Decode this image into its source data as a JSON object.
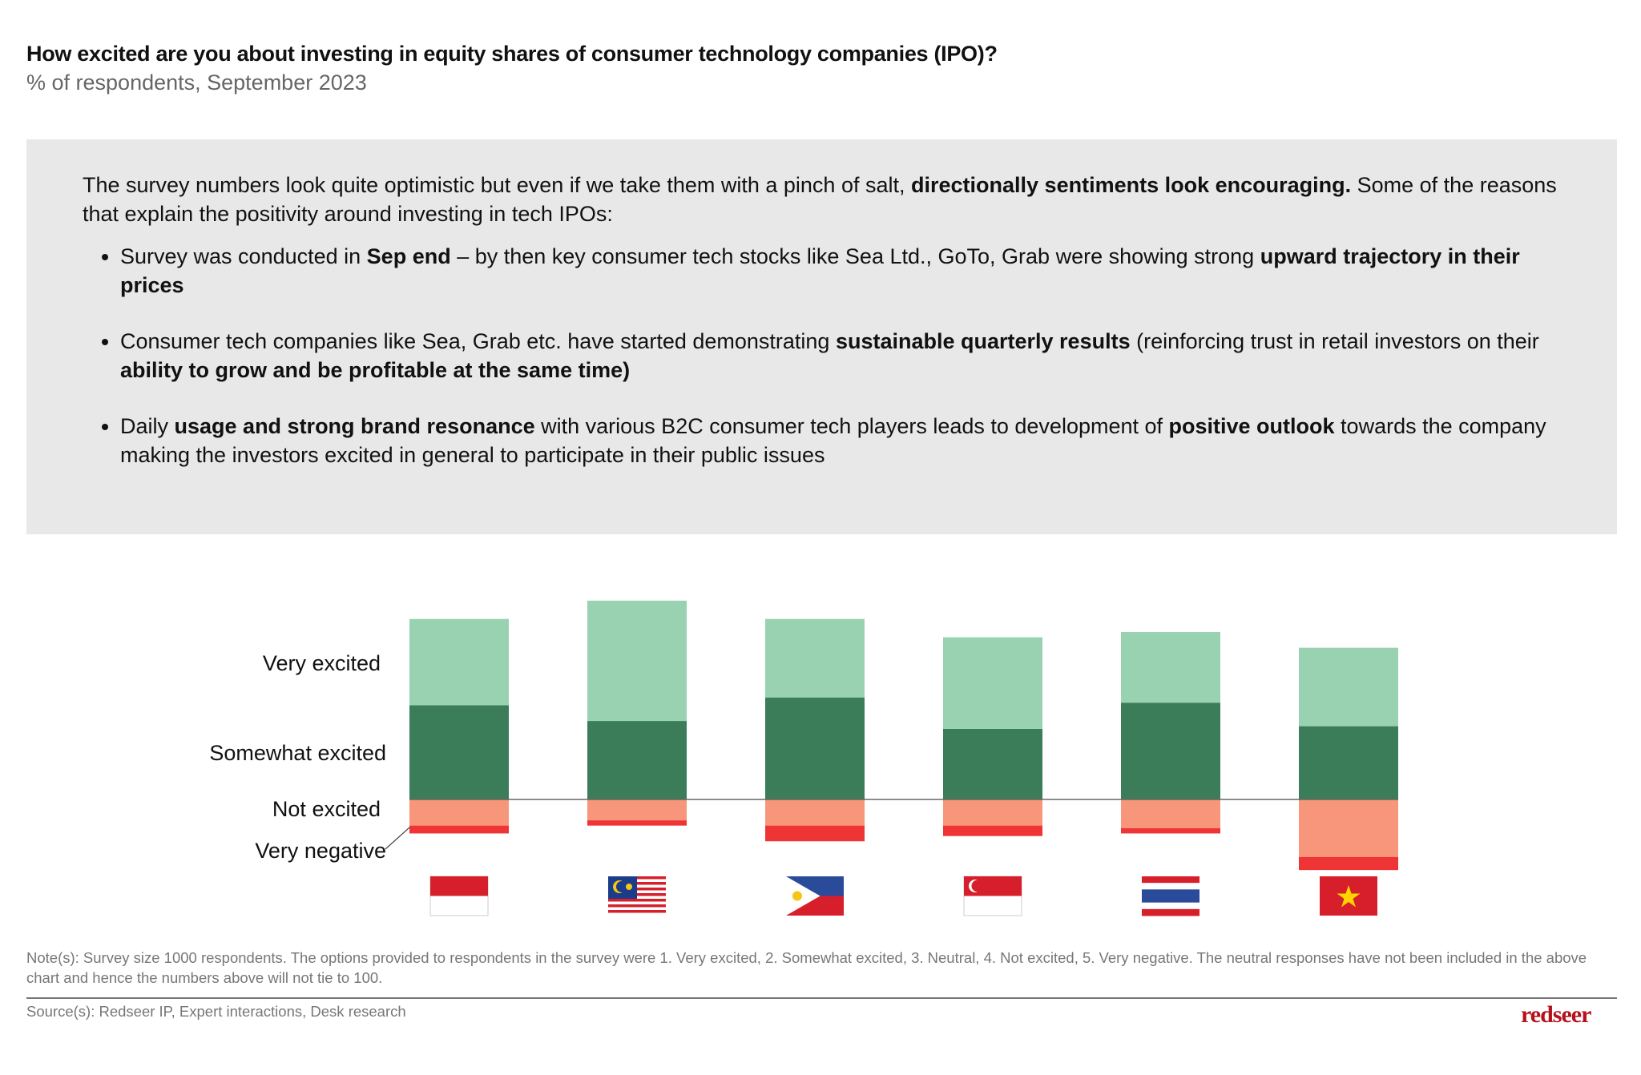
{
  "header": {
    "title": "How excited are you about investing in equity shares of consumer technology companies (IPO)?",
    "subtitle": "% of respondents, September 2023"
  },
  "commentary": {
    "intro": [
      {
        "t": "The survey numbers look quite optimistic but even if we take them with a pinch of salt, ",
        "b": false
      },
      {
        "t": "directionally sentiments look encouraging.",
        "b": true
      },
      {
        "t": " Some of the reasons that explain the positivity around investing in tech IPOs:",
        "b": false
      }
    ],
    "bullets": [
      [
        {
          "t": "Survey was conducted in ",
          "b": false
        },
        {
          "t": "Sep end",
          "b": true
        },
        {
          "t": " – by then key consumer tech stocks like Sea Ltd., GoTo, Grab were showing strong ",
          "b": false
        },
        {
          "t": "upward trajectory in their prices",
          "b": true
        }
      ],
      [
        {
          "t": "Consumer tech companies like Sea, Grab etc. have started demonstrating ",
          "b": false
        },
        {
          "t": "sustainable quarterly results",
          "b": true
        },
        {
          "t": " (reinforcing trust in retail investors on their ",
          "b": false
        },
        {
          "t": "ability to grow and be profitable at the same time)",
          "b": true
        }
      ],
      [
        {
          "t": "Daily ",
          "b": false
        },
        {
          "t": "usage and strong brand resonance",
          "b": true
        },
        {
          "t": " with various B2C consumer tech players leads to development of ",
          "b": false
        },
        {
          "t": "positive outlook",
          "b": true
        },
        {
          "t": " towards the company making the investors excited in general to participate in their public issues",
          "b": false
        }
      ]
    ]
  },
  "chart_data": {
    "type": "bar",
    "stacked": true,
    "diverging": true,
    "categories": [
      "Indonesia",
      "Malaysia",
      "Philippines",
      "Singapore",
      "Thailand",
      "Vietnam"
    ],
    "category_icons": [
      "flag-indonesia",
      "flag-malaysia",
      "flag-philippines",
      "flag-singapore",
      "flag-thailand",
      "flag-vietnam"
    ],
    "series": [
      {
        "name": "Very excited",
        "color": "#3a7d58",
        "values": [
          36,
          30,
          39,
          27,
          37,
          28
        ]
      },
      {
        "name": "Somewhat excited",
        "color": "#99d2b0",
        "values": [
          33,
          46,
          30,
          35,
          27,
          30
        ]
      },
      {
        "name": "Not excited",
        "color": "#f7967a",
        "values": [
          10,
          8,
          10,
          10,
          11,
          22
        ]
      },
      {
        "name": "Very negative",
        "color": "#ee3434",
        "values": [
          3,
          2,
          6,
          4,
          2,
          5
        ]
      }
    ],
    "legend": "left",
    "grid": false,
    "axis_labels_shown": false,
    "title": "",
    "xlabel": "",
    "ylabel": ""
  },
  "footer": {
    "note": "Note(s): Survey size 1000 respondents. The options provided to respondents in the survey were 1. Very excited, 2. Somewhat excited, 3. Neutral, 4. Not excited, 5. Very negative. The neutral responses have not been included in the above chart and hence the numbers above will not tie to 100.",
    "source": "Source(s):  Redseer IP, Expert interactions, Desk research",
    "logo": "redseer"
  }
}
